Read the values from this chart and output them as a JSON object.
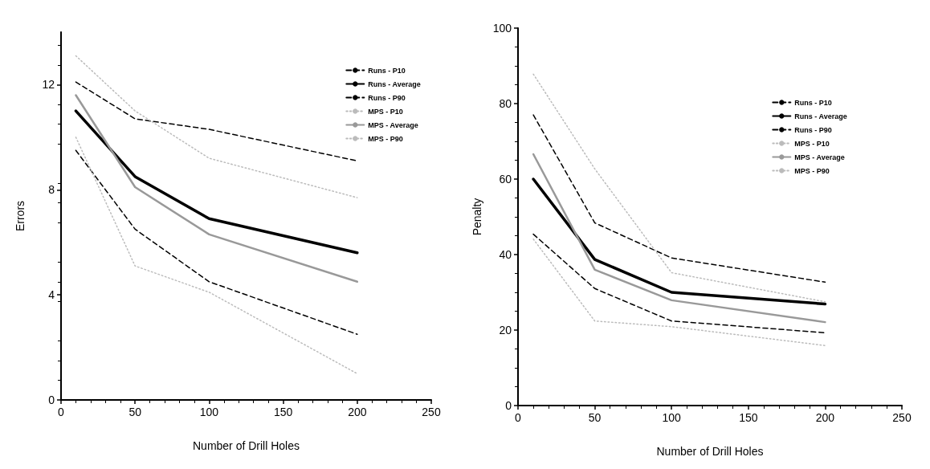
{
  "chart_data": [
    {
      "type": "line",
      "xlabel": "Number of Drill Holes",
      "ylabel": "Errors",
      "xlim": [
        0,
        250
      ],
      "xticks": [
        0,
        50,
        100,
        150,
        200,
        250
      ],
      "ylim": [
        0,
        14
      ],
      "yticks": [
        0,
        4,
        8,
        12
      ],
      "grid": false,
      "legend": "top right",
      "marker": "none",
      "x": [
        10,
        50,
        100,
        200
      ],
      "series": [
        {
          "name": "Runs - P10",
          "color": "#000000",
          "line_style": "dashed",
          "values": [
            12.1,
            10.7,
            10.3,
            9.1
          ]
        },
        {
          "name": "Runs - Average",
          "color": "#000000",
          "line_style": "solid",
          "values": [
            11.0,
            8.5,
            6.9,
            5.6
          ]
        },
        {
          "name": "Runs - P90",
          "color": "#000000",
          "line_style": "dashed",
          "values": [
            9.5,
            6.5,
            4.5,
            2.5
          ]
        },
        {
          "name": "MPS - P10",
          "color": "#bbbbbb",
          "line_style": "dotted",
          "values": [
            13.1,
            11.0,
            9.2,
            7.7
          ]
        },
        {
          "name": "MPS - Average",
          "color": "#999999",
          "line_style": "solid",
          "values": [
            11.6,
            8.1,
            6.3,
            4.5
          ]
        },
        {
          "name": "MPS - P90",
          "color": "#bbbbbb",
          "line_style": "dotted",
          "values": [
            10.0,
            5.1,
            4.1,
            1.0
          ]
        }
      ]
    },
    {
      "type": "line",
      "xlabel": "Number of Drill Holes",
      "ylabel": "Penalty",
      "xlim": [
        0,
        250
      ],
      "xticks": [
        0,
        50,
        100,
        150,
        200,
        250
      ],
      "ylim": [
        0,
        100
      ],
      "yticks": [
        0,
        20,
        40,
        60,
        80,
        100
      ],
      "grid": false,
      "legend": "top right",
      "marker": "none",
      "x": [
        10,
        50,
        100,
        200
      ],
      "series": [
        {
          "name": "Runs - P10",
          "color": "#000000",
          "line_style": "dashed",
          "values": [
            77.0,
            48.4,
            39.1,
            32.7
          ]
        },
        {
          "name": "Runs - Average",
          "color": "#000000",
          "line_style": "solid",
          "values": [
            60.0,
            38.7,
            30.0,
            26.9
          ]
        },
        {
          "name": "Runs - P90",
          "color": "#000000",
          "line_style": "dashed",
          "values": [
            45.4,
            31.0,
            22.4,
            19.3
          ]
        },
        {
          "name": "MPS - P10",
          "color": "#bbbbbb",
          "line_style": "dotted",
          "values": [
            87.8,
            62.7,
            35.2,
            27.5
          ]
        },
        {
          "name": "MPS - Average",
          "color": "#999999",
          "line_style": "solid",
          "values": [
            66.6,
            36.0,
            27.9,
            22.1
          ]
        },
        {
          "name": "MPS - P90",
          "color": "#bbbbbb",
          "line_style": "dotted",
          "values": [
            44.1,
            22.4,
            20.9,
            15.9
          ]
        }
      ]
    }
  ]
}
